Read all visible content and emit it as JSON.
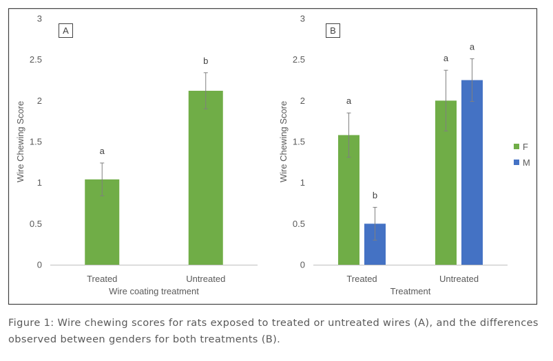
{
  "chart_data": [
    {
      "type": "bar",
      "panel_label": "A",
      "title": "",
      "categories": [
        "Treated",
        "Untreated"
      ],
      "series": [
        {
          "name": "",
          "color": "#70AD47",
          "values": [
            1.04,
            2.12
          ],
          "errors": [
            0.2,
            0.22
          ],
          "labels": [
            "a",
            "b"
          ]
        }
      ],
      "xlabel": "Wire coating treatment",
      "ylabel": "Wire Chewing Score",
      "ylim": [
        0,
        3
      ],
      "yticks": [
        "0",
        "0.5",
        "1",
        "1.5",
        "2",
        "2.5",
        "3"
      ],
      "grid": false,
      "legend": null
    },
    {
      "type": "bar",
      "panel_label": "B",
      "title": "",
      "categories": [
        "Treated",
        "Untreated"
      ],
      "series": [
        {
          "name": "F",
          "color": "#70AD47",
          "values": [
            1.58,
            2.0
          ],
          "errors": [
            0.27,
            0.37
          ],
          "labels": [
            "a",
            "a"
          ]
        },
        {
          "name": "M",
          "color": "#4472C4",
          "values": [
            0.5,
            2.25
          ],
          "errors": [
            0.2,
            0.26
          ],
          "labels": [
            "b",
            "a"
          ]
        }
      ],
      "xlabel": "Treatment",
      "ylabel": "Wire Chewing Score",
      "ylim": [
        0,
        3
      ],
      "yticks": [
        "0",
        "0.5",
        "1",
        "1.5",
        "2",
        "2.5",
        "3"
      ],
      "grid": false,
      "legend": "right"
    }
  ],
  "caption": "Figure 1: Wire chewing scores for rats exposed to treated or untreated wires (A), and the differences observed between genders for both treatments (B)."
}
